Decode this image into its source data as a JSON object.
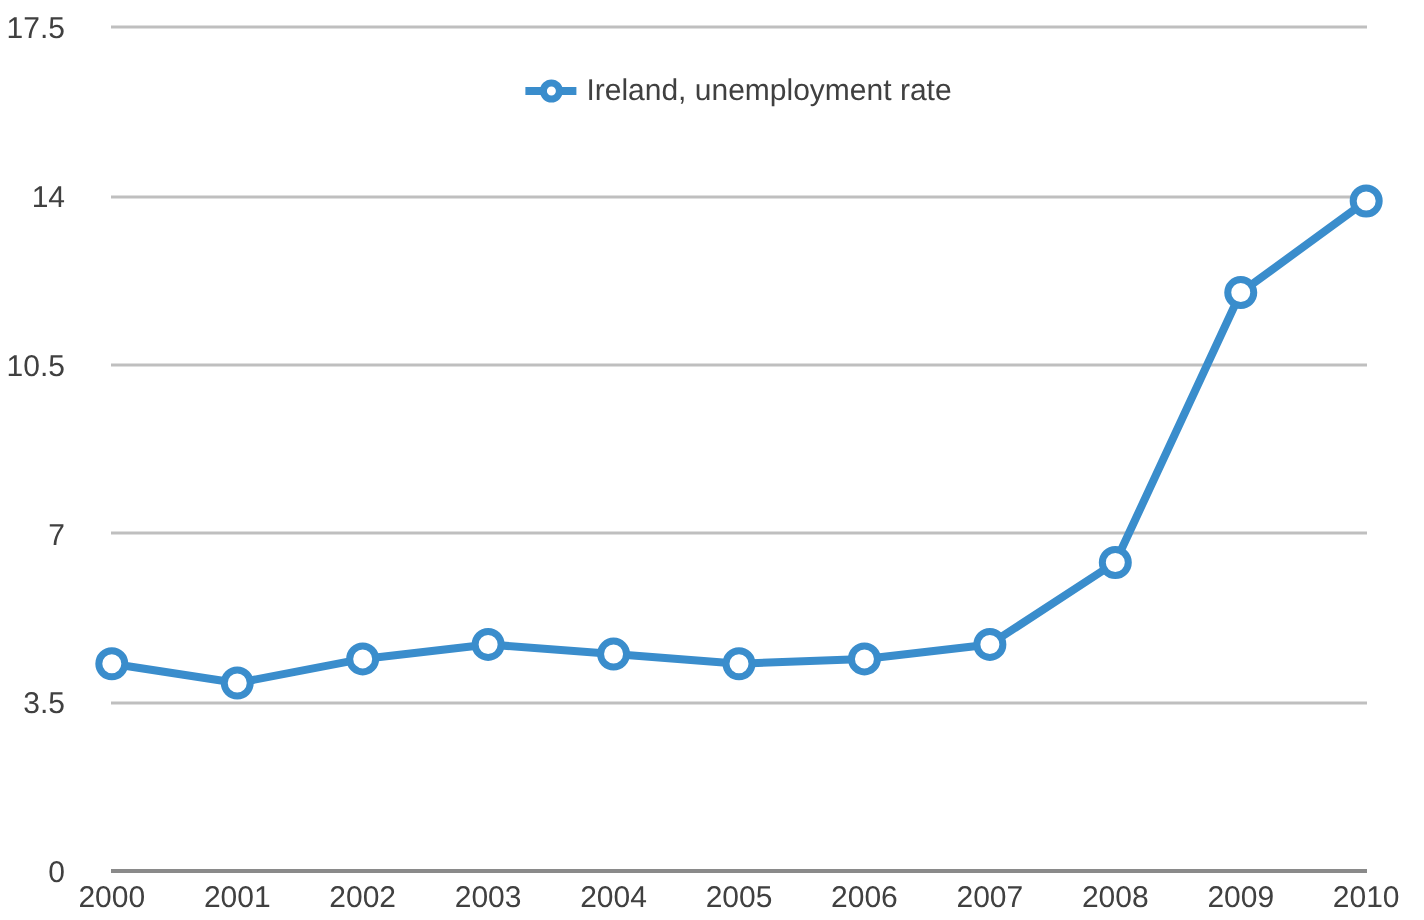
{
  "chart_data": {
    "type": "line",
    "x": [
      2000,
      2001,
      2002,
      2003,
      2004,
      2005,
      2006,
      2007,
      2008,
      2009,
      2010
    ],
    "series": [
      {
        "name": "Ireland, unemployment rate",
        "color": "#3a8dcc",
        "values": [
          4.3,
          3.9,
          4.4,
          4.7,
          4.5,
          4.3,
          4.4,
          4.7,
          6.4,
          12.0,
          13.9
        ]
      }
    ],
    "xlim": [
      2000,
      2010
    ],
    "xticks": [
      2000,
      2001,
      2002,
      2003,
      2004,
      2005,
      2006,
      2007,
      2008,
      2009,
      2010
    ],
    "ylim": [
      0,
      17.5
    ],
    "yticks": [
      0,
      3.5,
      7,
      10.5,
      14,
      17.5
    ],
    "grid": "y",
    "legend": "top",
    "marker": "circle",
    "line_style": "solid"
  }
}
